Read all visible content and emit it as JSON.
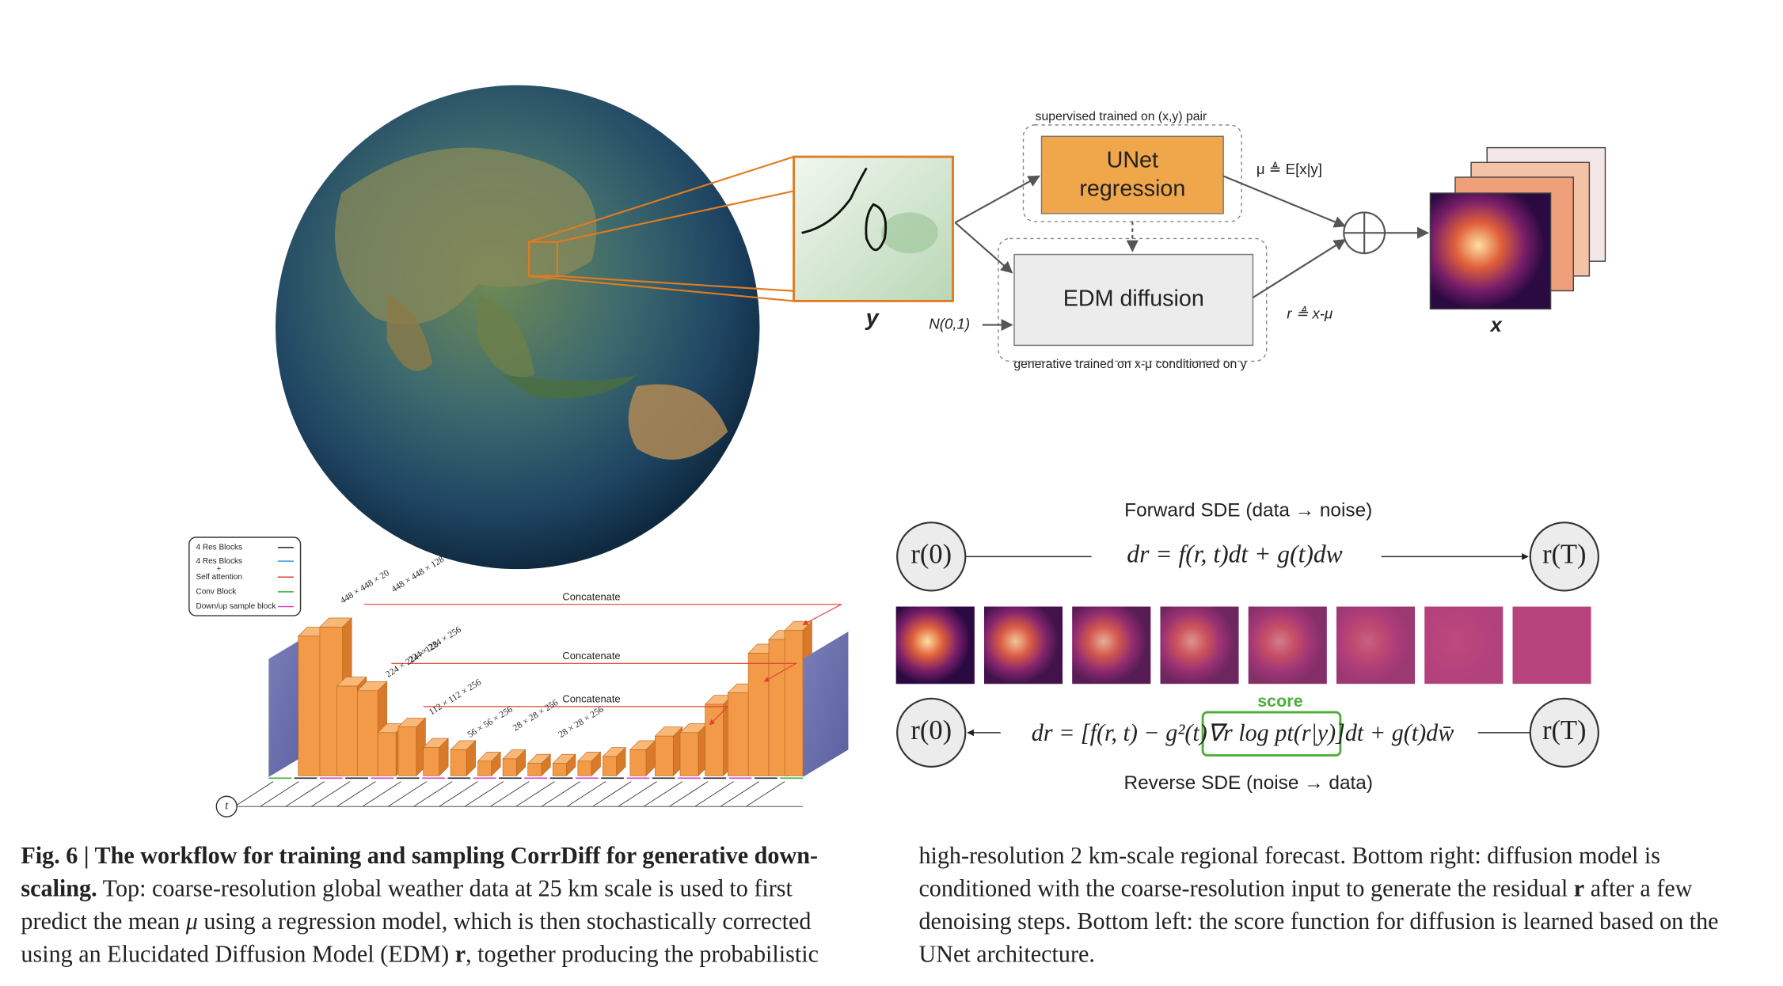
{
  "top": {
    "supervised_label": "supervised trained on (x,y) pair",
    "unet_line1": "UNet",
    "unet_line2": "regression",
    "mu_label": "μ ≜ E[x|y]",
    "edm_label": "EDM diffusion",
    "r_label": "r ≜ x-μ",
    "generative_label": "generative trained on x-μ conditioned on y",
    "y_label": "y",
    "noise_label": "N(0,1)",
    "x_label": "x"
  },
  "sde": {
    "forward_title": "Forward SDE (data → noise)",
    "forward_equation": "dr = f(r, t)dt + g(t)dw",
    "r0": "r(0)",
    "rT": "r(T)",
    "score": "score",
    "reverse_pre": "dr = [f(r, t) − g²(t)",
    "reverse_score": "∇r log pt(r|y)",
    "reverse_post": "]dt + g(t)dw̄",
    "reverse_title": "Reverse SDE (noise → data)"
  },
  "unet": {
    "legend": [
      "4 Res Blocks",
      "4 Res Blocks",
      "+",
      "Self attention",
      "Conv Block",
      "Down/up sample block"
    ],
    "concatenate": [
      "Concatenate",
      "Concatenate",
      "Concatenate"
    ],
    "dims": [
      "448 × 448 × 20",
      "448 × 448 × 128",
      "224 × 224 × 128",
      "224 × 224 × 256",
      "112 × 112 × 256",
      "56 × 56 × 256",
      "28 × 28 × 256",
      "28 × 28 × 256"
    ],
    "t_label": "t"
  },
  "caption": {
    "left": [
      [
        {
          "text": "Fig. 6 | The workflow for training and sampling CorrDiff for generative down-",
          "style": "bold"
        }
      ],
      [
        {
          "text": "scaling.",
          "style": "bold"
        },
        {
          "text": " Top: coarse-resolution global weather data at 25 km scale is used to first",
          "style": "normal"
        }
      ],
      [
        {
          "text": "predict the mean ",
          "style": "normal"
        },
        {
          "text": "μ",
          "style": "italic"
        },
        {
          "text": " using a regression model, which is then stochastically corrected",
          "style": "normal"
        }
      ],
      [
        {
          "text": "using an Elucidated Diffusion Model (EDM) ",
          "style": "normal"
        },
        {
          "text": "r",
          "style": "bold"
        },
        {
          "text": ", together producing the probabilistic",
          "style": "normal"
        }
      ]
    ],
    "right": [
      [
        {
          "text": "high-resolution 2 km-scale regional forecast. Bottom right: diffusion model is",
          "style": "normal"
        }
      ],
      [
        {
          "text": "conditioned with the coarse-resolution input to generate the residual ",
          "style": "normal"
        },
        {
          "text": "r",
          "style": "bold"
        },
        {
          "text": " after a few",
          "style": "normal"
        }
      ],
      [
        {
          "text": "denoising steps. Bottom left: the score function for diffusion is learned based on the",
          "style": "normal"
        }
      ],
      [
        {
          "text": "UNet architecture.",
          "style": "normal"
        }
      ]
    ]
  }
}
